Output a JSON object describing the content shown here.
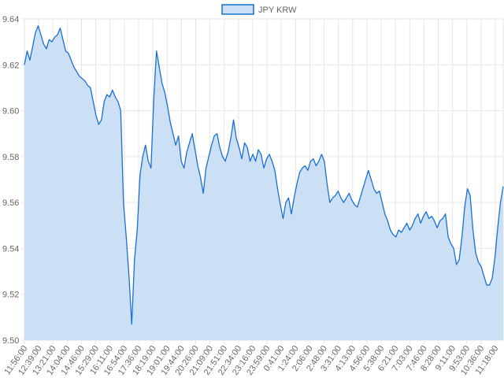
{
  "chart_data": {
    "type": "area",
    "series": [
      {
        "name": "JPY KRW",
        "color": "#1a6fd1",
        "fill": "#cce0f5",
        "points": [
          [
            0,
            9.62
          ],
          [
            1,
            9.626
          ],
          [
            2,
            9.622
          ],
          [
            3,
            9.628
          ],
          [
            4,
            9.634
          ],
          [
            5,
            9.637
          ],
          [
            6,
            9.633
          ],
          [
            7,
            9.629
          ],
          [
            8,
            9.627
          ],
          [
            9,
            9.631
          ],
          [
            10,
            9.63
          ],
          [
            11,
            9.632
          ],
          [
            12,
            9.633
          ],
          [
            13,
            9.636
          ],
          [
            14,
            9.631
          ],
          [
            15,
            9.626
          ],
          [
            16,
            9.625
          ],
          [
            17,
            9.622
          ],
          [
            18,
            9.619
          ],
          [
            19,
            9.617
          ],
          [
            20,
            9.615
          ],
          [
            21,
            9.614
          ],
          [
            22,
            9.613
          ],
          [
            23,
            9.611
          ],
          [
            24,
            9.61
          ],
          [
            25,
            9.604
          ],
          [
            26,
            9.598
          ],
          [
            27,
            9.594
          ],
          [
            28,
            9.596
          ],
          [
            29,
            9.604
          ],
          [
            30,
            9.607
          ],
          [
            31,
            9.606
          ],
          [
            32,
            9.609
          ],
          [
            33,
            9.606
          ],
          [
            34,
            9.604
          ],
          [
            35,
            9.6
          ],
          [
            36,
            9.56
          ],
          [
            37,
            9.545
          ],
          [
            38,
            9.528
          ],
          [
            39,
            9.507
          ],
          [
            40,
            9.535
          ],
          [
            41,
            9.548
          ],
          [
            42,
            9.572
          ],
          [
            43,
            9.58
          ],
          [
            44,
            9.585
          ],
          [
            45,
            9.578
          ],
          [
            46,
            9.575
          ],
          [
            47,
            9.605
          ],
          [
            48,
            9.626
          ],
          [
            49,
            9.619
          ],
          [
            50,
            9.612
          ],
          [
            51,
            9.608
          ],
          [
            52,
            9.602
          ],
          [
            53,
            9.595
          ],
          [
            54,
            9.59
          ],
          [
            55,
            9.585
          ],
          [
            56,
            9.589
          ],
          [
            57,
            9.578
          ],
          [
            58,
            9.575
          ],
          [
            59,
            9.582
          ],
          [
            60,
            9.586
          ],
          [
            61,
            9.59
          ],
          [
            62,
            9.583
          ],
          [
            63,
            9.576
          ],
          [
            64,
            9.571
          ],
          [
            65,
            9.564
          ],
          [
            66,
            9.575
          ],
          [
            67,
            9.58
          ],
          [
            68,
            9.585
          ],
          [
            69,
            9.589
          ],
          [
            70,
            9.59
          ],
          [
            71,
            9.584
          ],
          [
            72,
            9.58
          ],
          [
            73,
            9.578
          ],
          [
            74,
            9.582
          ],
          [
            75,
            9.588
          ],
          [
            76,
            9.596
          ],
          [
            77,
            9.588
          ],
          [
            78,
            9.584
          ],
          [
            79,
            9.579
          ],
          [
            80,
            9.586
          ],
          [
            81,
            9.584
          ],
          [
            82,
            9.578
          ],
          [
            83,
            9.581
          ],
          [
            84,
            9.578
          ],
          [
            85,
            9.583
          ],
          [
            86,
            9.581
          ],
          [
            87,
            9.575
          ],
          [
            88,
            9.579
          ],
          [
            89,
            9.581
          ],
          [
            90,
            9.578
          ],
          [
            91,
            9.574
          ],
          [
            92,
            9.566
          ],
          [
            93,
            9.559
          ],
          [
            94,
            9.553
          ],
          [
            95,
            9.56
          ],
          [
            96,
            9.562
          ],
          [
            97,
            9.555
          ],
          [
            98,
            9.562
          ],
          [
            99,
            9.568
          ],
          [
            100,
            9.573
          ],
          [
            101,
            9.575
          ],
          [
            102,
            9.576
          ],
          [
            103,
            9.574
          ],
          [
            104,
            9.578
          ],
          [
            105,
            9.579
          ],
          [
            106,
            9.576
          ],
          [
            107,
            9.578
          ],
          [
            108,
            9.581
          ],
          [
            109,
            9.578
          ],
          [
            110,
            9.568
          ],
          [
            111,
            9.56
          ],
          [
            112,
            9.562
          ],
          [
            113,
            9.563
          ],
          [
            114,
            9.565
          ],
          [
            115,
            9.562
          ],
          [
            116,
            9.56
          ],
          [
            117,
            9.562
          ],
          [
            118,
            9.564
          ],
          [
            119,
            9.561
          ],
          [
            120,
            9.559
          ],
          [
            121,
            9.558
          ],
          [
            122,
            9.562
          ],
          [
            123,
            9.566
          ],
          [
            124,
            9.57
          ],
          [
            125,
            9.574
          ],
          [
            126,
            9.57
          ],
          [
            127,
            9.566
          ],
          [
            128,
            9.564
          ],
          [
            129,
            9.565
          ],
          [
            130,
            9.56
          ],
          [
            131,
            9.555
          ],
          [
            132,
            9.552
          ],
          [
            133,
            9.548
          ],
          [
            134,
            9.546
          ],
          [
            135,
            9.545
          ],
          [
            136,
            9.548
          ],
          [
            137,
            9.547
          ],
          [
            138,
            9.549
          ],
          [
            139,
            9.551
          ],
          [
            140,
            9.548
          ],
          [
            141,
            9.55
          ],
          [
            142,
            9.553
          ],
          [
            143,
            9.555
          ],
          [
            144,
            9.551
          ],
          [
            145,
            9.554
          ],
          [
            146,
            9.556
          ],
          [
            147,
            9.553
          ],
          [
            148,
            9.554
          ],
          [
            149,
            9.552
          ],
          [
            150,
            9.549
          ],
          [
            151,
            9.552
          ],
          [
            152,
            9.553
          ],
          [
            153,
            9.555
          ],
          [
            154,
            9.545
          ],
          [
            155,
            9.542
          ],
          [
            156,
            9.54
          ],
          [
            157,
            9.533
          ],
          [
            158,
            9.535
          ],
          [
            159,
            9.545
          ],
          [
            160,
            9.558
          ],
          [
            161,
            9.566
          ],
          [
            162,
            9.563
          ],
          [
            163,
            9.548
          ],
          [
            164,
            9.538
          ],
          [
            165,
            9.534
          ],
          [
            166,
            9.532
          ],
          [
            167,
            9.528
          ],
          [
            168,
            9.524
          ],
          [
            169,
            9.524
          ],
          [
            170,
            9.527
          ],
          [
            171,
            9.536
          ],
          [
            172,
            9.549
          ],
          [
            173,
            9.56
          ],
          [
            174,
            9.567
          ]
        ]
      }
    ],
    "x_labels": [
      "11:56:00",
      "12:39:00",
      "13:21:00",
      "14:04:00",
      "14:46:00",
      "15:29:00",
      "16:11:00",
      "16:54:00",
      "17:36:00",
      "18:19:00",
      "19:01:00",
      "19:44:00",
      "20:26:00",
      "21:09:00",
      "21:51:00",
      "22:34:00",
      "23:16:00",
      "23:59:00",
      "0:41:00",
      "1:24:00",
      "2:06:00",
      "2:48:00",
      "3:31:00",
      "4:13:00",
      "4:56:00",
      "5:38:00",
      "6:21:00",
      "7:03:00",
      "7:46:00",
      "8:28:00",
      "9:11:00",
      "9:53:00",
      "10:36:00",
      "11:18:00"
    ],
    "yticks": [
      "9.50",
      "9.52",
      "9.54",
      "9.56",
      "9.58",
      "9.60",
      "9.62",
      "9.64"
    ],
    "ylim": [
      9.5,
      9.64
    ],
    "grid": true,
    "legend": "top-center"
  }
}
